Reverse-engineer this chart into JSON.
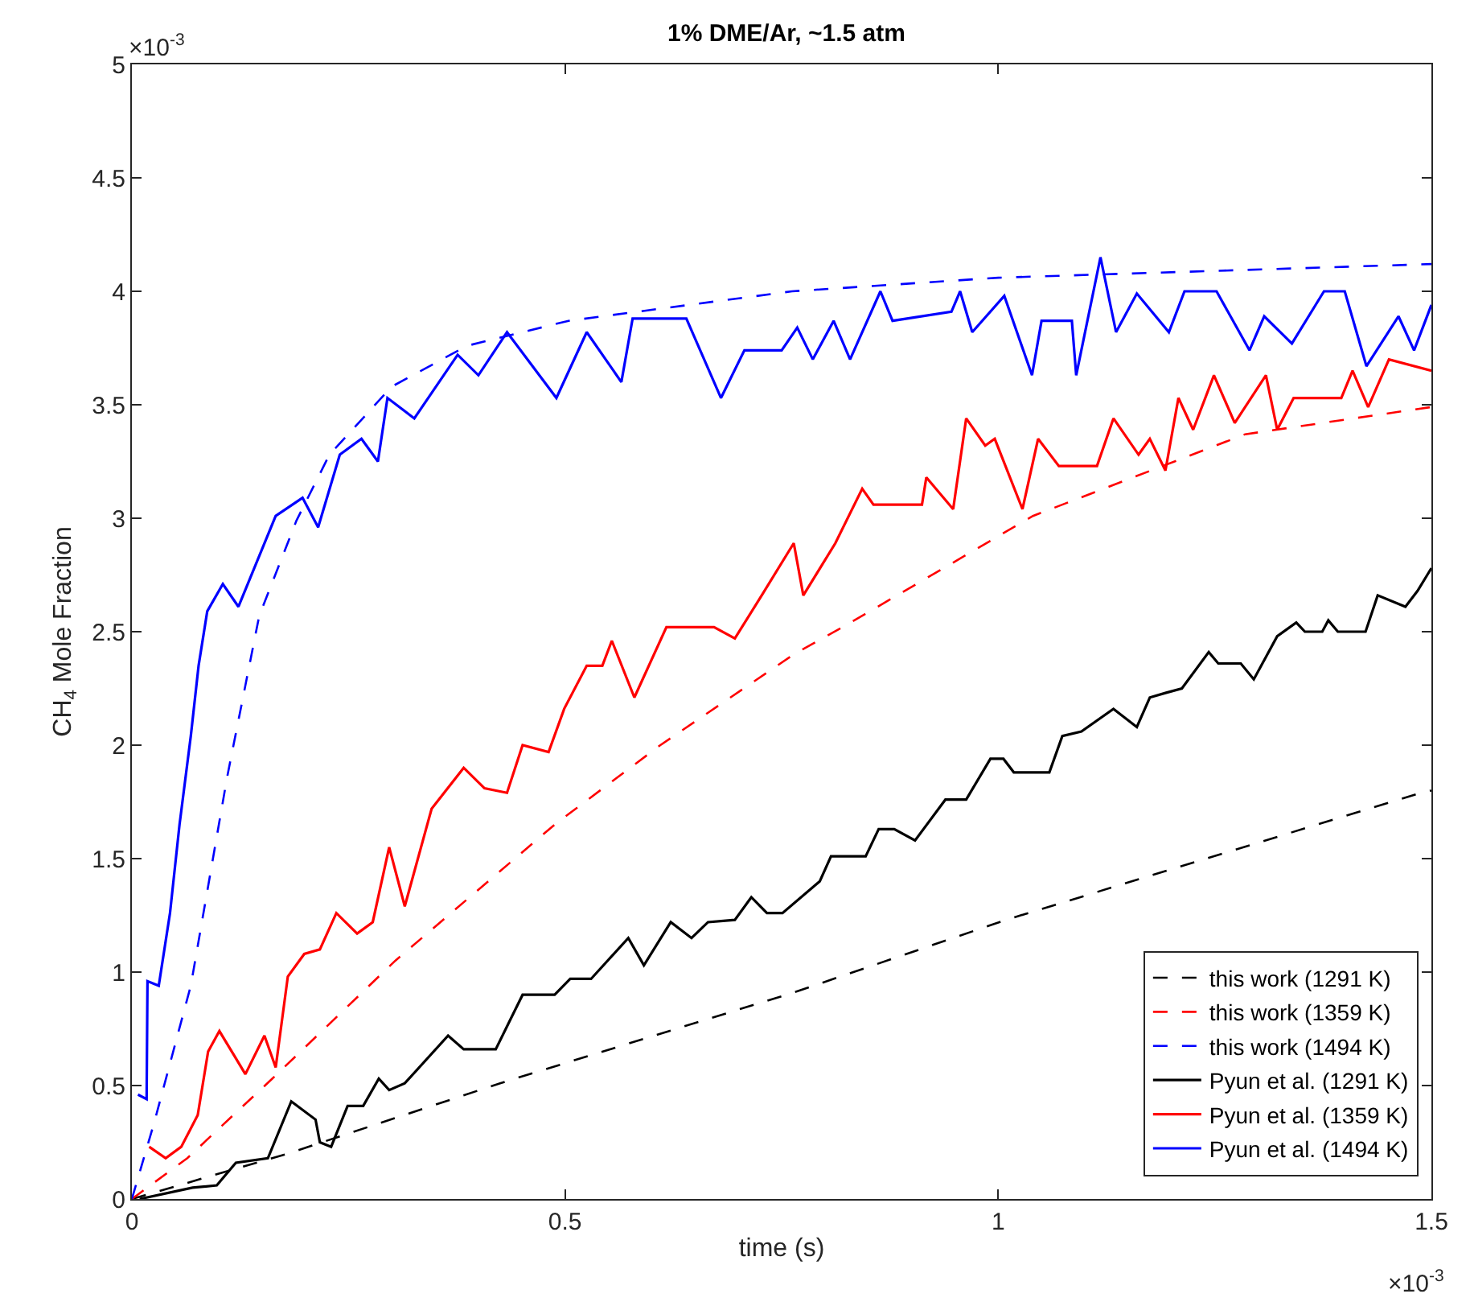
{
  "chart_data": {
    "type": "line",
    "title": "1% DME/Ar, ~1.5 atm",
    "xlabel": "time (s)",
    "ylabel": "CH$_{4}$ Mole Fraction",
    "annotations": [
      "×10$^{-3}$",
      "×10$^{-3}$"
    ],
    "xlim": [
      0,
      1.5
    ],
    "xticks": [
      0,
      0.5,
      1,
      1.5
    ],
    "ylim": [
      0,
      5
    ],
    "yticks": [
      0,
      0.5,
      1,
      1.5,
      2,
      2.5,
      3,
      3.5,
      4,
      4.5,
      5
    ],
    "legend": "bottom right",
    "marker": "none",
    "series": [
      {
        "name": "this work (1291 K)",
        "color": "#000000",
        "line_style": "dashed",
        "x": [
          0,
          0.18,
          0.425,
          0.764,
          1.009,
          1.488,
          1.5
        ],
        "values": [
          0,
          0.2,
          0.51,
          0.91,
          1.23,
          1.79,
          1.8
        ]
      },
      {
        "name": "this work (1359 K)",
        "color": "#ff0000",
        "line_style": "dashed",
        "x": [
          0,
          0.064,
          0.162,
          0.304,
          0.488,
          0.61,
          0.764,
          0.825,
          1.04,
          1.285,
          1.5
        ],
        "values": [
          0,
          0.18,
          0.53,
          1.05,
          1.65,
          2.0,
          2.4,
          2.53,
          3.01,
          3.37,
          3.49
        ]
      },
      {
        "name": "this work (1494 K)",
        "color": "#0000ff",
        "line_style": "dashed",
        "x": [
          0,
          0.026,
          0.068,
          0.11,
          0.147,
          0.19,
          0.228,
          0.3,
          0.387,
          0.504,
          0.762,
          1.0,
          1.5
        ],
        "values": [
          0,
          0.34,
          0.94,
          1.86,
          2.57,
          2.99,
          3.28,
          3.58,
          3.76,
          3.87,
          4.0,
          4.06,
          4.12
        ]
      },
      {
        "name": "Pyun et al. (1291 K)",
        "color": "#000000",
        "line_style": "solid",
        "x": [
          0.009,
          0.07,
          0.098,
          0.12,
          0.157,
          0.184,
          0.212,
          0.217,
          0.23,
          0.249,
          0.267,
          0.285,
          0.297,
          0.315,
          0.365,
          0.383,
          0.42,
          0.451,
          0.488,
          0.506,
          0.53,
          0.573,
          0.591,
          0.622,
          0.646,
          0.665,
          0.696,
          0.715,
          0.733,
          0.751,
          0.794,
          0.807,
          0.847,
          0.862,
          0.88,
          0.904,
          0.939,
          0.963,
          0.991,
          1.006,
          1.018,
          1.059,
          1.074,
          1.096,
          1.133,
          1.16,
          1.175,
          1.193,
          1.212,
          1.243,
          1.254,
          1.28,
          1.295,
          1.322,
          1.344,
          1.354,
          1.374,
          1.381,
          1.392,
          1.424,
          1.438,
          1.47,
          1.484,
          1.5
        ],
        "values": [
          0,
          0.05,
          0.06,
          0.16,
          0.18,
          0.43,
          0.35,
          0.25,
          0.23,
          0.41,
          0.41,
          0.53,
          0.48,
          0.51,
          0.72,
          0.66,
          0.66,
          0.9,
          0.9,
          0.97,
          0.97,
          1.15,
          1.03,
          1.22,
          1.15,
          1.22,
          1.23,
          1.33,
          1.26,
          1.26,
          1.4,
          1.51,
          1.51,
          1.63,
          1.63,
          1.58,
          1.76,
          1.76,
          1.94,
          1.94,
          1.88,
          1.88,
          2.04,
          2.06,
          2.16,
          2.08,
          2.21,
          2.23,
          2.25,
          2.41,
          2.36,
          2.36,
          2.29,
          2.48,
          2.54,
          2.5,
          2.5,
          2.55,
          2.5,
          2.5,
          2.66,
          2.61,
          2.68,
          2.78
        ]
      },
      {
        "name": "Pyun et al. (1359 K)",
        "color": "#ff0000",
        "line_style": "solid",
        "x": [
          0.02,
          0.039,
          0.057,
          0.076,
          0.088,
          0.101,
          0.12,
          0.131,
          0.153,
          0.166,
          0.18,
          0.199,
          0.217,
          0.236,
          0.26,
          0.278,
          0.297,
          0.315,
          0.346,
          0.383,
          0.407,
          0.433,
          0.451,
          0.481,
          0.499,
          0.525,
          0.543,
          0.554,
          0.58,
          0.617,
          0.672,
          0.696,
          0.727,
          0.764,
          0.775,
          0.812,
          0.843,
          0.856,
          0.912,
          0.917,
          0.948,
          0.963,
          0.985,
          0.996,
          1.028,
          1.046,
          1.07,
          1.114,
          1.133,
          1.162,
          1.175,
          1.193,
          1.208,
          1.225,
          1.249,
          1.273,
          1.309,
          1.322,
          1.341,
          1.396,
          1.409,
          1.427,
          1.451,
          1.5
        ],
        "values": [
          0.23,
          0.18,
          0.23,
          0.37,
          0.65,
          0.74,
          0.62,
          0.55,
          0.72,
          0.58,
          0.98,
          1.08,
          1.1,
          1.26,
          1.17,
          1.22,
          1.55,
          1.29,
          1.72,
          1.9,
          1.81,
          1.79,
          2.0,
          1.97,
          2.16,
          2.35,
          2.35,
          2.46,
          2.21,
          2.52,
          2.52,
          2.47,
          2.66,
          2.89,
          2.66,
          2.89,
          3.13,
          3.06,
          3.06,
          3.18,
          3.04,
          3.44,
          3.32,
          3.35,
          3.04,
          3.35,
          3.23,
          3.23,
          3.44,
          3.28,
          3.35,
          3.21,
          3.53,
          3.39,
          3.63,
          3.42,
          3.63,
          3.39,
          3.53,
          3.53,
          3.65,
          3.49,
          3.7,
          3.65
        ]
      },
      {
        "name": "Pyun et al. (1494 K)",
        "color": "#0000ff",
        "line_style": "solid",
        "x": [
          0.007,
          0.017,
          0.018,
          0.031,
          0.044,
          0.055,
          0.068,
          0.077,
          0.087,
          0.105,
          0.123,
          0.166,
          0.197,
          0.215,
          0.24,
          0.265,
          0.284,
          0.295,
          0.326,
          0.376,
          0.4,
          0.433,
          0.49,
          0.525,
          0.565,
          0.578,
          0.64,
          0.68,
          0.707,
          0.75,
          0.768,
          0.786,
          0.81,
          0.829,
          0.864,
          0.878,
          0.946,
          0.956,
          0.97,
          1.007,
          1.039,
          1.05,
          1.085,
          1.09,
          1.118,
          1.136,
          1.16,
          1.197,
          1.215,
          1.252,
          1.29,
          1.307,
          1.339,
          1.376,
          1.4,
          1.425,
          1.462,
          1.48,
          1.5
        ],
        "values": [
          0.46,
          0.44,
          0.96,
          0.94,
          1.26,
          1.65,
          2.04,
          2.35,
          2.59,
          2.71,
          2.61,
          3.01,
          3.09,
          2.96,
          3.28,
          3.35,
          3.25,
          3.53,
          3.44,
          3.72,
          3.63,
          3.82,
          3.53,
          3.82,
          3.6,
          3.88,
          3.88,
          3.53,
          3.74,
          3.74,
          3.84,
          3.7,
          3.87,
          3.7,
          4.0,
          3.87,
          3.91,
          4.0,
          3.82,
          3.98,
          3.63,
          3.87,
          3.87,
          3.63,
          4.15,
          3.82,
          3.99,
          3.82,
          4.0,
          4.0,
          3.74,
          3.89,
          3.77,
          4.0,
          4.0,
          3.67,
          3.89,
          3.74,
          3.94
        ]
      }
    ]
  }
}
